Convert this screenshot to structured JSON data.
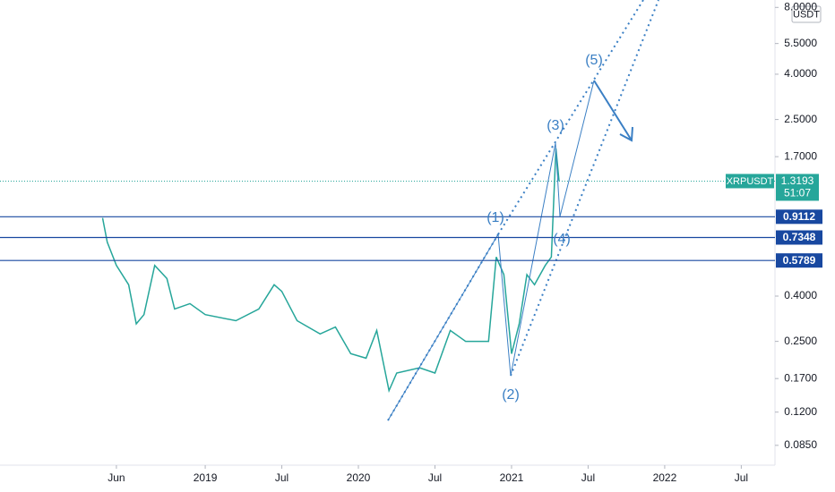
{
  "chart_data": {
    "type": "line",
    "symbol": "XRPUSDT",
    "currency": "USDT",
    "countdown": "51:07",
    "log_scale": true,
    "grid": false,
    "xlim": [
      2017.66,
      2022.72
    ],
    "xticks": [
      {
        "value": 2018.42,
        "label": "Jun"
      },
      {
        "value": 2019,
        "label": "2019"
      },
      {
        "value": 2019.5,
        "label": "Jul"
      },
      {
        "value": 2020,
        "label": "2020"
      },
      {
        "value": 2020.5,
        "label": "Jul"
      },
      {
        "value": 2021,
        "label": "2021"
      },
      {
        "value": 2021.5,
        "label": "Jul"
      },
      {
        "value": 2022,
        "label": "2022"
      },
      {
        "value": 2022.5,
        "label": "Jul"
      }
    ],
    "ylim": [
      0.0692,
      8.64
    ],
    "yticks": [
      {
        "value": 8,
        "label": "8.0000"
      },
      {
        "value": 5.5,
        "label": "5.5000"
      },
      {
        "value": 4,
        "label": "4.0000"
      },
      {
        "value": 2.5,
        "label": "2.5000"
      },
      {
        "value": 1.7,
        "label": "1.7000"
      },
      {
        "value": 0.4,
        "label": "0.4000"
      },
      {
        "value": 0.25,
        "label": "0.2500"
      },
      {
        "value": 0.17,
        "label": "0.1700"
      },
      {
        "value": 0.12,
        "label": "0.1200"
      },
      {
        "value": 0.085,
        "label": "0.0850"
      }
    ],
    "series": [
      {
        "name": "XRPUSDT",
        "color": "#26a69a",
        "x": [
          2018.33,
          2018.36,
          2018.42,
          2018.5,
          2018.55,
          2018.6,
          2018.67,
          2018.75,
          2018.8,
          2018.9,
          2019.0,
          2019.2,
          2019.35,
          2019.45,
          2019.5,
          2019.6,
          2019.75,
          2019.85,
          2019.95,
          2020.05,
          2020.12,
          2020.2,
          2020.25,
          2020.4,
          2020.5,
          2020.6,
          2020.7,
          2020.85,
          2020.9,
          2020.95,
          2021.0,
          2021.05,
          2021.1,
          2021.15,
          2021.22,
          2021.26,
          2021.29,
          2021.31
        ],
        "values": [
          0.9,
          0.7,
          0.55,
          0.45,
          0.3,
          0.33,
          0.55,
          0.48,
          0.35,
          0.37,
          0.33,
          0.31,
          0.35,
          0.45,
          0.42,
          0.31,
          0.27,
          0.29,
          0.22,
          0.21,
          0.28,
          0.15,
          0.18,
          0.19,
          0.18,
          0.28,
          0.25,
          0.25,
          0.6,
          0.5,
          0.22,
          0.3,
          0.5,
          0.45,
          0.55,
          0.6,
          1.85,
          1.3193
        ]
      }
    ],
    "last_price": 1.3193,
    "levels": [
      0.9112,
      0.7348,
      0.5789
    ],
    "level_color": "#1848a0",
    "waves": [
      "(1)",
      "(2)",
      "(3)",
      "(4)",
      "(5)"
    ]
  }
}
